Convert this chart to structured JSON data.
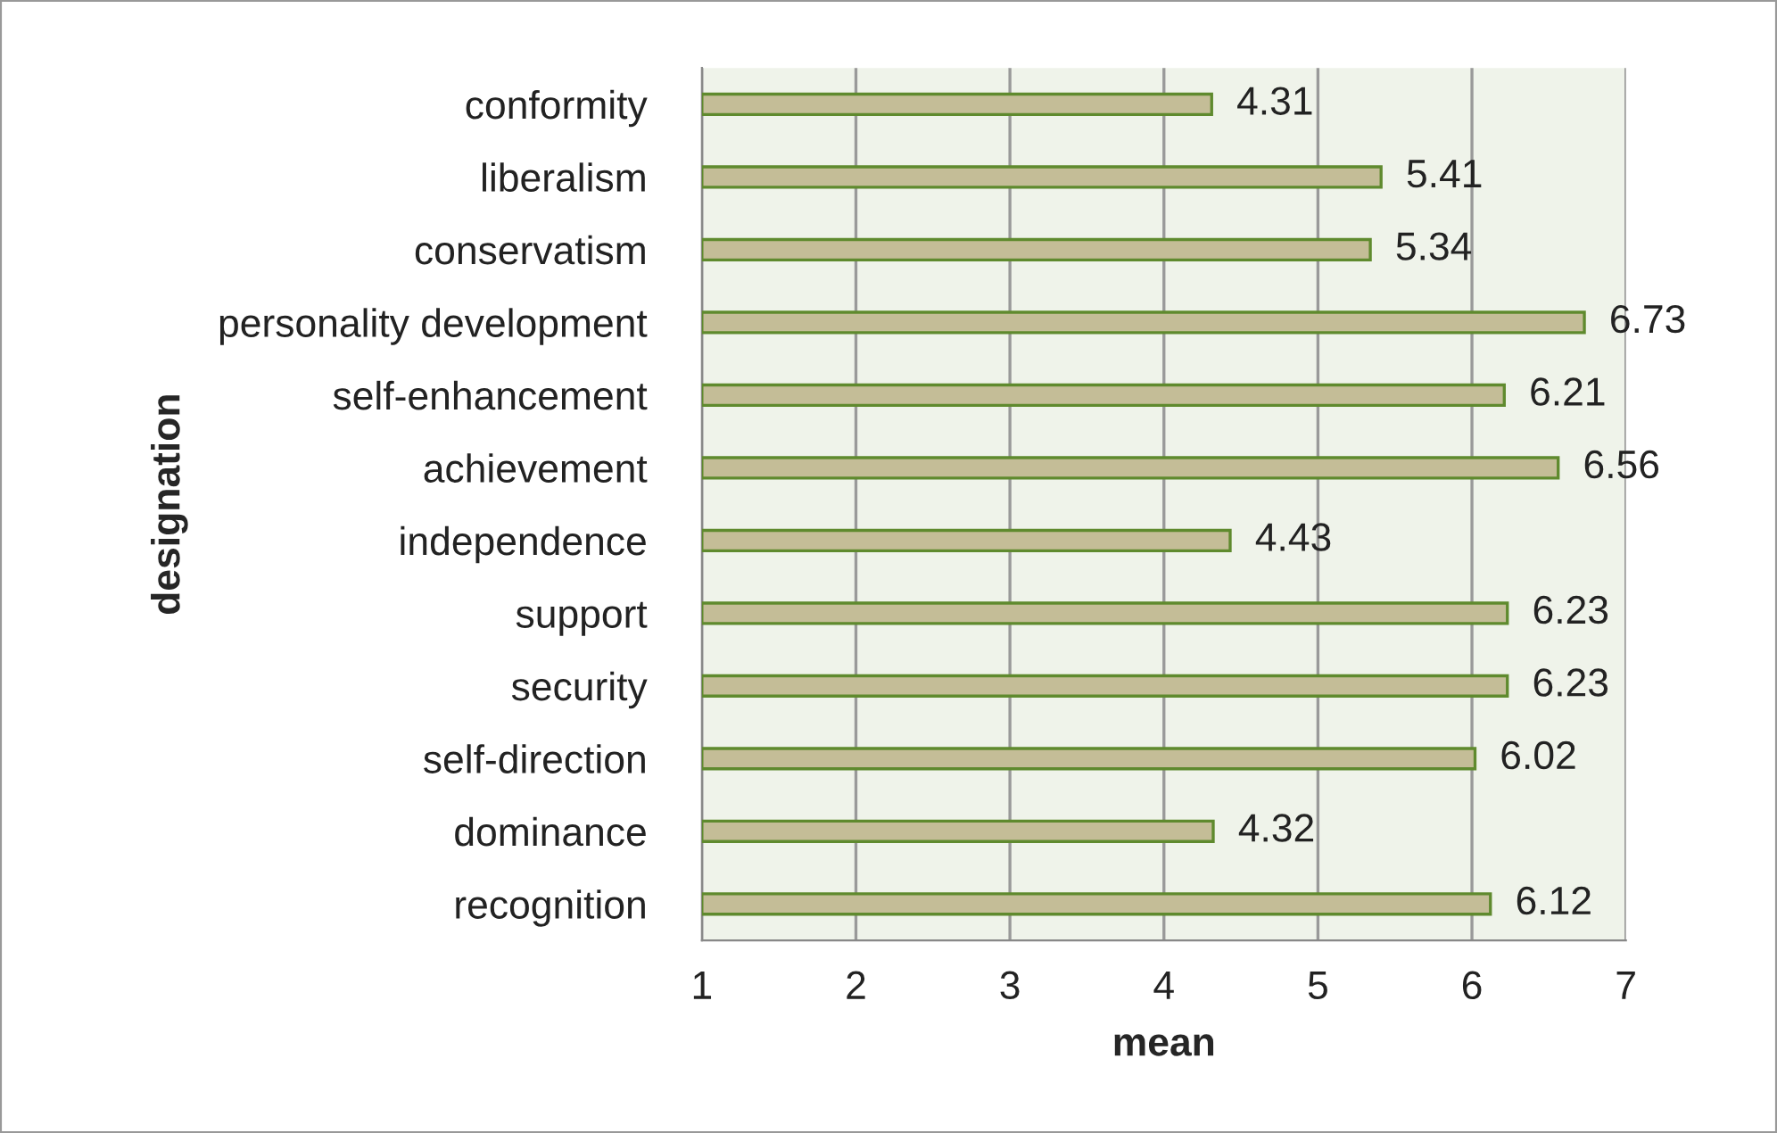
{
  "chart_data": {
    "type": "bar",
    "orientation": "horizontal",
    "xlabel": "mean",
    "ylabel": "designation",
    "categories": [
      "conformity",
      "liberalism",
      "conservatism",
      "personality development",
      "self-enhancement",
      "achievement",
      "independence",
      "support",
      "security",
      "self-direction",
      "dominance",
      "recognition"
    ],
    "values": [
      4.31,
      5.41,
      5.34,
      6.73,
      6.21,
      6.56,
      4.43,
      6.23,
      6.23,
      6.02,
      4.32,
      6.12
    ],
    "color": "#c4bd97",
    "xlim": [
      1,
      7
    ],
    "xticks": [
      1,
      2,
      3,
      4,
      5,
      6,
      7
    ],
    "grid": "x",
    "data_labels": true
  }
}
